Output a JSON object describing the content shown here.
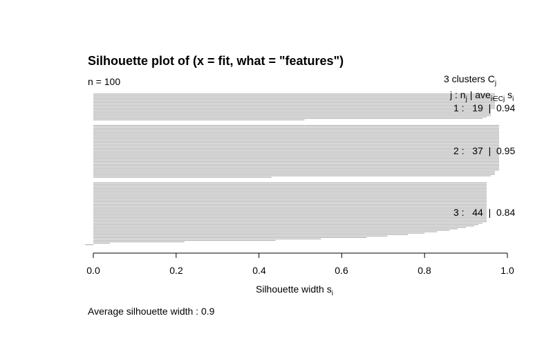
{
  "title": "Silhouette plot of (x = fit, what = \"features\")",
  "n_label": "n = 100",
  "header": {
    "clusters_text": "3  clusters  C",
    "clusters_sub": "j",
    "cols_text_j": "j :  n",
    "cols_sub_j": "j",
    "cols_text_ave": " | ave",
    "cols_sub_ave": "i∈Cj",
    "cols_text_s": "  s",
    "cols_sub_s": "i"
  },
  "cluster_labels": [
    "1 :   19  |  0.94",
    "2 :   37  |  0.95",
    "3 :   44  |  0.84"
  ],
  "xlabel_text": "Silhouette width s",
  "xlabel_sub": "i",
  "avg_label": "Average silhouette width :  0.9",
  "chart_data": {
    "type": "bar",
    "orientation": "horizontal",
    "xlim": [
      0,
      1
    ],
    "x_ticks": [
      "0.0",
      "0.2",
      "0.4",
      "0.6",
      "0.8",
      "1.0"
    ],
    "bar_color": "#b0b0b0",
    "clusters": [
      {
        "cluster": 1,
        "n": 19,
        "ave": 0.94,
        "widths": [
          0.97,
          0.97,
          0.97,
          0.97,
          0.97,
          0.97,
          0.97,
          0.97,
          0.97,
          0.97,
          0.97,
          0.96,
          0.96,
          0.96,
          0.96,
          0.96,
          0.95,
          0.94,
          0.51
        ]
      },
      {
        "cluster": 2,
        "n": 37,
        "ave": 0.95,
        "widths": [
          0.98,
          0.98,
          0.98,
          0.98,
          0.98,
          0.98,
          0.98,
          0.98,
          0.98,
          0.98,
          0.98,
          0.98,
          0.98,
          0.98,
          0.98,
          0.98,
          0.98,
          0.98,
          0.98,
          0.98,
          0.98,
          0.98,
          0.98,
          0.98,
          0.98,
          0.98,
          0.98,
          0.98,
          0.98,
          0.98,
          0.98,
          0.98,
          0.97,
          0.97,
          0.97,
          0.96,
          0.43
        ]
      },
      {
        "cluster": 3,
        "n": 44,
        "ave": 0.84,
        "widths": [
          0.95,
          0.95,
          0.95,
          0.95,
          0.95,
          0.95,
          0.95,
          0.95,
          0.95,
          0.95,
          0.95,
          0.95,
          0.95,
          0.95,
          0.95,
          0.95,
          0.95,
          0.95,
          0.95,
          0.95,
          0.95,
          0.95,
          0.95,
          0.95,
          0.95,
          0.95,
          0.95,
          0.95,
          0.94,
          0.93,
          0.92,
          0.9,
          0.88,
          0.86,
          0.83,
          0.8,
          0.76,
          0.71,
          0.66,
          0.55,
          0.44,
          0.22,
          0.04,
          -0.02
        ]
      }
    ]
  }
}
